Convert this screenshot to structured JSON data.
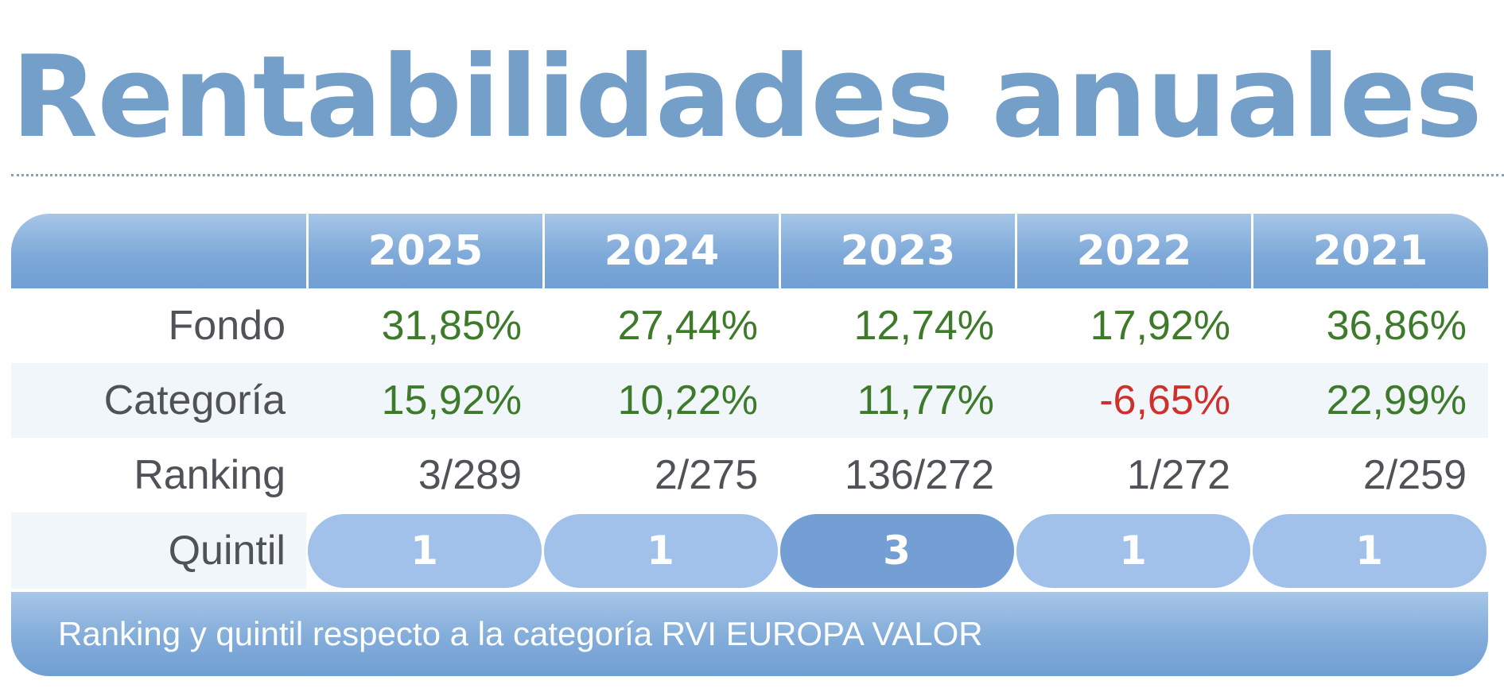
{
  "title": "Rentabilidades anuales",
  "years": [
    "2025",
    "2024",
    "2023",
    "2022",
    "2021"
  ],
  "rows": {
    "fondo": {
      "label": "Fondo",
      "values": [
        "31,85%",
        "27,44%",
        "12,74%",
        "17,92%",
        "36,86%"
      ]
    },
    "categoria": {
      "label": "Categoría",
      "values": [
        "15,92%",
        "10,22%",
        "11,77%",
        "-6,65%",
        "22,99%"
      ]
    },
    "ranking": {
      "label": "Ranking",
      "values": [
        "3/289",
        "2/275",
        "136/272",
        "1/272",
        "2/259"
      ]
    },
    "quintil": {
      "label": "Quintil",
      "values": [
        "1",
        "1",
        "3",
        "1",
        "1"
      ]
    }
  },
  "footer": "Ranking y quintil respecto a la categoría RVI EUROPA VALOR",
  "colors": {
    "title": "#739fc9",
    "positive": "#3d7a2a",
    "negative": "#d0302c",
    "neutral_text": "#4f5358",
    "header_gradient_top": "#a7c6e8",
    "header_gradient_bottom": "#719fd3",
    "quintil_light": "#a1c1eb",
    "quintil_dark": "#739fd4",
    "alt_row": "#f1f6fb"
  }
}
